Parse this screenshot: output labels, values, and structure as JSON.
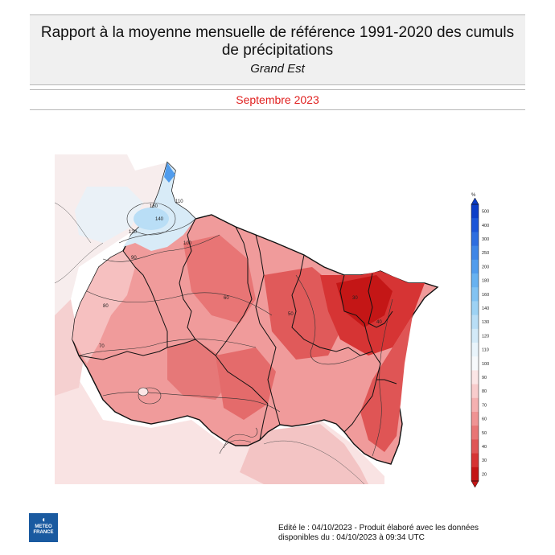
{
  "header": {
    "title_line1": "Rapport à la moyenne mensuelle de référence 1991-2020 des cumuls",
    "title_line2": "de précipitations",
    "region": "Grand Est",
    "period": "Septembre 2023"
  },
  "legend": {
    "unit": "%",
    "ticks": [
      "500",
      "400",
      "300",
      "250",
      "200",
      "180",
      "160",
      "140",
      "130",
      "120",
      "110",
      "100",
      "90",
      "80",
      "70",
      "60",
      "50",
      "40",
      "30",
      "20"
    ],
    "colors": [
      "#0c3ec8",
      "#1c56d8",
      "#2e6ee0",
      "#3f86e6",
      "#519cec",
      "#68b2f0",
      "#82c3f2",
      "#9dd2f4",
      "#b9def6",
      "#d3eaf8",
      "#e9f4fb",
      "#f7f9fb",
      "#fbe6e6",
      "#f8cccc",
      "#f4b0b0",
      "#ef9393",
      "#e87575",
      "#df5555",
      "#d63434",
      "#c41616"
    ]
  },
  "map": {
    "contour_labels": [
      "160",
      "140",
      "120",
      "110",
      "100",
      "90",
      "80",
      "70",
      "60",
      "50",
      "40",
      "30"
    ]
  },
  "footer": {
    "line1": "Edité le : 04/10/2023 - Produit élaboré avec les données",
    "line2": "disponibles du : 04/10/2023 à 09:34 UTC"
  },
  "logo": {
    "line1": "METEO",
    "line2": "FRANCE"
  }
}
